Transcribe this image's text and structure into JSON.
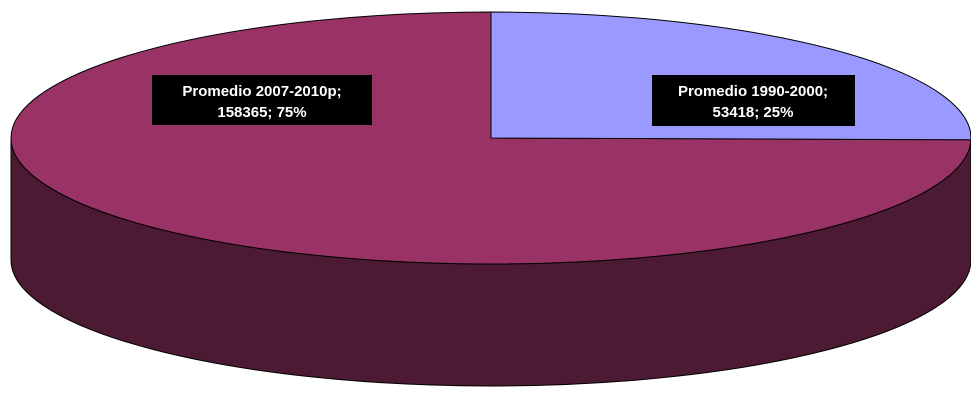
{
  "chart_data": {
    "type": "pie",
    "style": "3d",
    "title": "",
    "slices": [
      {
        "label": "Promedio 2007-2010p",
        "value": 158365,
        "percent": 75,
        "label_line1": "Promedio 2007-2010p;",
        "label_line2": "158365; 75%",
        "color": "#993366",
        "side_color": "#4d1a33"
      },
      {
        "label": "Promedio 1990-2000",
        "value": 53418,
        "percent": 25,
        "label_line1": "Promedio 1990-2000;",
        "label_line2": "53418; 25%",
        "color": "#9999ff",
        "side_color": "#4d4d80"
      }
    ]
  },
  "style": {
    "label_background": "#000000",
    "label_text_color": "#ffffff",
    "outline_color": "#000000"
  }
}
